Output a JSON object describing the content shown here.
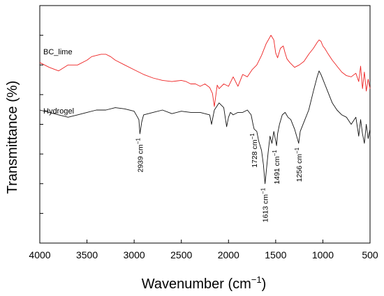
{
  "chart_data": {
    "type": "line",
    "title": "",
    "xlabel": "Wavenumber (cm",
    "xlabel_sup": "−1",
    "xlabel_end": ")",
    "ylabel": "Transmittance (%)",
    "xlim": [
      4000,
      500
    ],
    "x_reversed": true,
    "ylim": [
      0,
      10
    ],
    "y_ticks_labeled": false,
    "y_tick_values": [
      1.25,
      2.5,
      3.75,
      5.0,
      6.25,
      7.5,
      8.75
    ],
    "x_ticks": [
      4000,
      3500,
      3000,
      2500,
      2000,
      1500,
      1000,
      500
    ],
    "x_tick_labels": [
      "4000",
      "3500",
      "3000",
      "2500",
      "2000",
      "1500",
      "1000",
      "500"
    ],
    "grid": false,
    "series": [
      {
        "name": "BC_lime",
        "color": "#ee2222",
        "x": [
          4000,
          3900,
          3800,
          3700,
          3600,
          3500,
          3450,
          3400,
          3350,
          3300,
          3250,
          3200,
          3100,
          3000,
          2900,
          2800,
          2700,
          2600,
          2500,
          2450,
          2400,
          2350,
          2300,
          2250,
          2200,
          2170,
          2150,
          2120,
          2100,
          2050,
          2000,
          1950,
          1900,
          1850,
          1800,
          1750,
          1700,
          1650,
          1600,
          1550,
          1520,
          1500,
          1480,
          1450,
          1420,
          1400,
          1380,
          1350,
          1300,
          1250,
          1200,
          1150,
          1100,
          1060,
          1040,
          1020,
          1000,
          980,
          950,
          900,
          850,
          800,
          750,
          700,
          650,
          620,
          600,
          580,
          560,
          540,
          520,
          500
        ],
        "y": [
          7.6,
          7.4,
          7.25,
          7.5,
          7.5,
          7.7,
          7.85,
          7.9,
          7.95,
          7.95,
          7.85,
          7.7,
          7.5,
          7.3,
          7.1,
          6.95,
          6.85,
          6.8,
          6.85,
          6.8,
          6.7,
          6.7,
          6.6,
          6.7,
          6.55,
          6.3,
          5.75,
          6.65,
          6.5,
          6.7,
          6.6,
          7.0,
          6.6,
          7.1,
          7.0,
          7.3,
          7.5,
          7.9,
          8.4,
          8.75,
          8.55,
          8.0,
          7.8,
          8.2,
          8.3,
          8.0,
          7.75,
          7.6,
          7.4,
          7.5,
          7.65,
          7.95,
          8.2,
          8.45,
          8.55,
          8.5,
          8.3,
          8.2,
          8.0,
          7.7,
          7.45,
          7.2,
          7.05,
          7.0,
          7.15,
          6.8,
          7.45,
          6.5,
          7.2,
          6.4,
          6.9,
          6.5
        ]
      },
      {
        "name": "Hydrogel",
        "color": "#111111",
        "x": [
          4000,
          3900,
          3800,
          3700,
          3600,
          3500,
          3400,
          3300,
          3200,
          3100,
          3000,
          2950,
          2939,
          2920,
          2900,
          2800,
          2700,
          2600,
          2500,
          2400,
          2300,
          2200,
          2180,
          2150,
          2100,
          2050,
          2020,
          2000,
          1980,
          1950,
          1900,
          1850,
          1800,
          1760,
          1740,
          1728,
          1700,
          1680,
          1650,
          1630,
          1613,
          1600,
          1580,
          1560,
          1540,
          1520,
          1500,
          1491,
          1480,
          1460,
          1430,
          1400,
          1370,
          1340,
          1300,
          1270,
          1256,
          1240,
          1200,
          1150,
          1100,
          1060,
          1040,
          1020,
          1000,
          980,
          950,
          900,
          850,
          800,
          750,
          700,
          650,
          620,
          600,
          580,
          560,
          540,
          520,
          500
        ],
        "y": [
          5.6,
          5.5,
          5.4,
          5.3,
          5.4,
          5.5,
          5.6,
          5.6,
          5.7,
          5.65,
          5.55,
          5.2,
          4.6,
          5.1,
          5.4,
          5.5,
          5.6,
          5.45,
          5.55,
          5.5,
          5.5,
          5.4,
          5.0,
          5.6,
          5.9,
          5.7,
          4.9,
          5.3,
          5.5,
          5.4,
          5.5,
          5.5,
          5.6,
          5.4,
          5.0,
          4.8,
          4.7,
          4.3,
          3.9,
          3.3,
          2.5,
          3.0,
          3.8,
          4.5,
          4.2,
          4.7,
          4.3,
          4.1,
          4.6,
          5.0,
          5.4,
          5.5,
          5.3,
          5.2,
          4.8,
          4.4,
          4.2,
          4.7,
          5.1,
          5.6,
          6.4,
          7.0,
          7.25,
          7.1,
          6.9,
          6.7,
          6.4,
          5.9,
          5.6,
          5.4,
          5.3,
          5.0,
          5.3,
          4.5,
          5.2,
          4.6,
          4.2,
          5.0,
          4.4,
          4.8
        ]
      }
    ],
    "annotations": [
      {
        "text": "2939 cm",
        "sup": "−1",
        "x": 2939,
        "y": 4.6
      },
      {
        "text": "1728 cm",
        "sup": "−1",
        "x": 1728,
        "y": 4.8
      },
      {
        "text": "1613 cm",
        "sup": "−1",
        "x": 1613,
        "y": 2.5
      },
      {
        "text": "1491 cm",
        "sup": "−1",
        "x": 1491,
        "y": 4.1
      },
      {
        "text": "1256 cm",
        "sup": "−1",
        "x": 1256,
        "y": 4.2
      }
    ]
  }
}
